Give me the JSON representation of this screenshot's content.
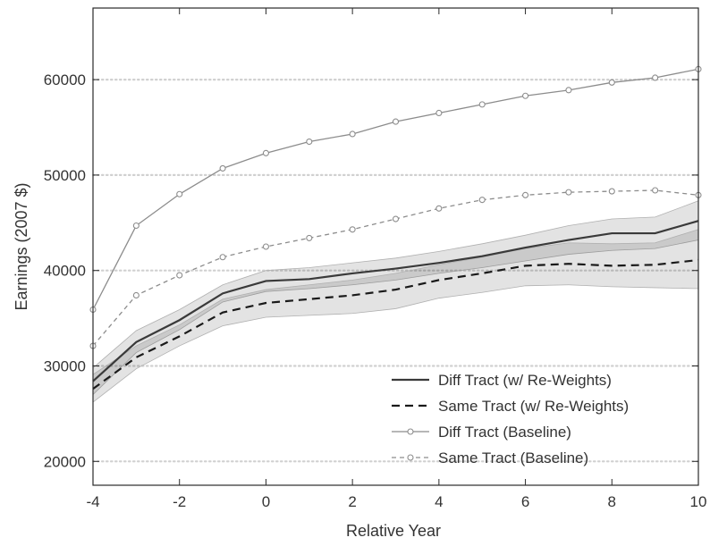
{
  "chart_data": {
    "type": "line",
    "title": "",
    "xlabel": "Relative Year",
    "ylabel": "Earnings (2007 $)",
    "xlim": [
      -4,
      10
    ],
    "ylim": [
      17500,
      67500
    ],
    "xticks": [
      -4,
      -2,
      0,
      2,
      4,
      6,
      8,
      10
    ],
    "yticks": [
      20000,
      30000,
      40000,
      50000,
      60000
    ],
    "grid": "horizontal dotted",
    "legend_position": "bottom-right",
    "x": [
      -4,
      -3,
      -2,
      -1,
      0,
      1,
      2,
      3,
      4,
      5,
      6,
      7,
      8,
      9,
      10
    ],
    "series": [
      {
        "name": "Diff Tract (w/ Re-Weights)",
        "style": "solid",
        "color": "#3a3a3a",
        "marker": "none",
        "values": [
          28400,
          32500,
          34800,
          37600,
          38900,
          39100,
          39700,
          40200,
          40800,
          41500,
          42400,
          43200,
          43900,
          43900,
          45200
        ],
        "ci_lower": [
          27000,
          31400,
          33800,
          36700,
          37800,
          38100,
          38500,
          39000,
          39700,
          40300,
          41000,
          41700,
          42100,
          42300,
          43200
        ],
        "ci_upper": [
          29800,
          33700,
          35900,
          38500,
          40000,
          40300,
          40800,
          41300,
          42000,
          42800,
          43700,
          44700,
          45400,
          45600,
          47300
        ]
      },
      {
        "name": "Same Tract (w/ Re-Weights)",
        "style": "dashed",
        "color": "#1a1a1a",
        "marker": "none",
        "values": [
          27600,
          30900,
          33100,
          35600,
          36600,
          37000,
          37400,
          38000,
          39000,
          39700,
          40500,
          40700,
          40500,
          40600,
          41100
        ],
        "ci_lower": [
          26200,
          29700,
          32100,
          34200,
          35100,
          35300,
          35500,
          36000,
          37100,
          37700,
          38400,
          38500,
          38300,
          38200,
          38100
        ],
        "ci_upper": [
          29100,
          32100,
          34300,
          37000,
          38000,
          38500,
          39000,
          39700,
          40600,
          41400,
          42300,
          42900,
          42800,
          42900,
          44300
        ]
      },
      {
        "name": "Diff Tract (Baseline)",
        "style": "solid",
        "color": "#8c8c8c",
        "marker": "circle",
        "values": [
          35900,
          44700,
          48000,
          50700,
          52300,
          53500,
          54300,
          55600,
          56500,
          57400,
          58300,
          58900,
          59700,
          60200,
          61100
        ]
      },
      {
        "name": "Same Tract (Baseline)",
        "style": "dashed",
        "color": "#8c8c8c",
        "marker": "circle",
        "values": [
          32100,
          37400,
          39500,
          41400,
          42500,
          43400,
          44300,
          45400,
          46500,
          47400,
          47900,
          48200,
          48300,
          48400,
          47900
        ]
      }
    ]
  }
}
